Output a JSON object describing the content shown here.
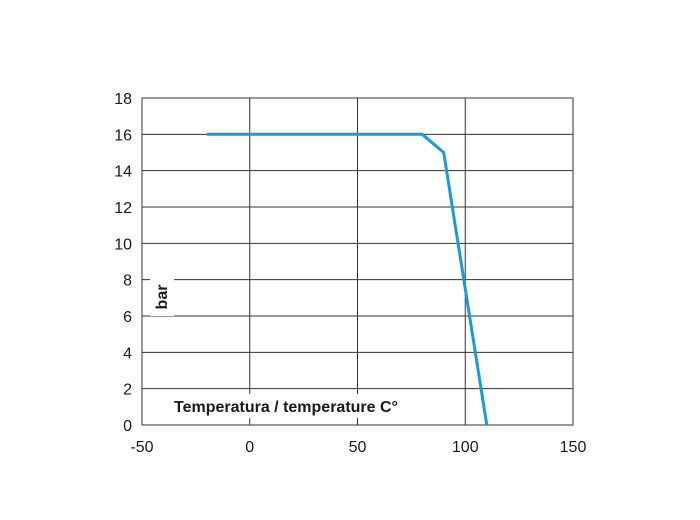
{
  "chart_data": {
    "type": "line",
    "xlabel": "Temperatura / temperature C°",
    "ylabel": "bar",
    "xlim": [
      -50,
      150
    ],
    "ylim": [
      0,
      18
    ],
    "xticks": [
      -50,
      0,
      50,
      100,
      150
    ],
    "yticks": [
      0,
      2,
      4,
      6,
      8,
      10,
      12,
      14,
      16,
      18
    ],
    "grid": true,
    "series": [
      {
        "color": "#1a9ad6",
        "x": [
          -20,
          80,
          90,
          110
        ],
        "y": [
          16,
          16,
          15,
          0
        ]
      }
    ]
  }
}
